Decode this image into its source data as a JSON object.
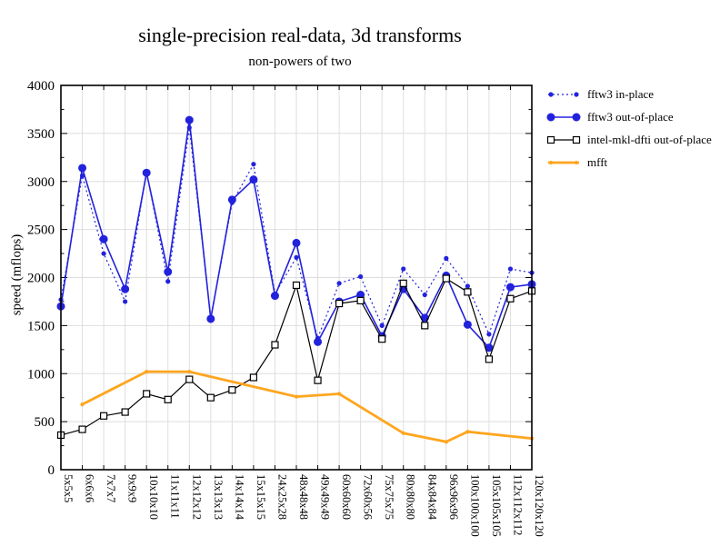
{
  "title": "single-precision real-data, 3d transforms",
  "subtitle": "non-powers of two",
  "chart_data": {
    "type": "line",
    "title": "single-precision real-data, 3d transforms",
    "subtitle": "non-powers of two",
    "xlabel": "",
    "ylabel": "speed (mflops)",
    "ylim": [
      0,
      4000
    ],
    "ytick_step": 500,
    "yticks": [
      0,
      500,
      1000,
      1500,
      2000,
      2500,
      3000,
      3500,
      4000
    ],
    "grid": true,
    "legend_position": "outside-top-right",
    "categories": [
      "5x5x5",
      "6x6x6",
      "7x7x7",
      "9x9x9",
      "10x10x10",
      "11x11x11",
      "12x12x12",
      "13x13x13",
      "14x14x14",
      "15x15x15",
      "24x25x28",
      "48x48x48",
      "49x49x49",
      "60x60x60",
      "72x60x56",
      "75x75x75",
      "80x80x80",
      "84x84x84",
      "96x96x96",
      "100x100x100",
      "105x105x105",
      "112x112x112",
      "120x120x120"
    ],
    "series": [
      {
        "name": "fftw3 in-place",
        "color": "#2222dd",
        "line": "dotted",
        "marker": "circle-small",
        "values": [
          1770,
          3060,
          2250,
          1750,
          3100,
          1960,
          3560,
          1580,
          2780,
          3180,
          1830,
          2210,
          1370,
          1940,
          2010,
          1500,
          2090,
          1820,
          2200,
          1910,
          1410,
          2090,
          2050
        ]
      },
      {
        "name": "fftw3 out-of-place",
        "color": "#2222dd",
        "line": "solid",
        "marker": "circle-large",
        "values": [
          1700,
          3140,
          2400,
          1880,
          3090,
          2060,
          3640,
          1570,
          2810,
          3020,
          1810,
          2360,
          1330,
          1750,
          1820,
          1390,
          1880,
          1580,
          2020,
          1510,
          1270,
          1900,
          1930
        ]
      },
      {
        "name": "intel-mkl-dfti out-of-place",
        "color": "#000000",
        "line": "solid",
        "marker": "square-open",
        "values": [
          360,
          420,
          560,
          600,
          790,
          730,
          940,
          750,
          830,
          960,
          1300,
          1920,
          930,
          1730,
          1760,
          1360,
          1940,
          1500,
          1990,
          1850,
          1150,
          1780,
          1860
        ]
      },
      {
        "name": "mfft",
        "color": "#ffa51e",
        "line": "solid",
        "marker": "dot",
        "values": [
          null,
          680,
          null,
          null,
          1020,
          null,
          1020,
          null,
          null,
          null,
          null,
          760,
          null,
          790,
          null,
          null,
          380,
          null,
          290,
          395,
          null,
          null,
          325
        ]
      }
    ]
  }
}
